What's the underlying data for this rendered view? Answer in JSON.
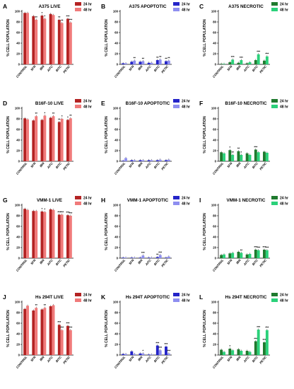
{
  "legend": {
    "series_a": "24 hr",
    "series_b": "48 hr"
  },
  "axis": {
    "ylabel": "% CELL POPULATION"
  },
  "colors": {
    "live_a": "#b32323",
    "live_b": "#f07a7a",
    "apop_a": "#2424c8",
    "apop_b": "#8e8ef0",
    "necr_a": "#1f7a2e",
    "necr_b": "#2bd17a",
    "axis": "#000000"
  },
  "chart_data": [
    {
      "type": "bar",
      "letter": "A",
      "title": "A375 LIVE",
      "ylabel": "% CELL POPULATION",
      "ylim": [
        0,
        100
      ],
      "yticks": [
        0,
        20,
        40,
        60,
        80,
        100
      ],
      "palette": "live",
      "categories": [
        "CONTROL",
        "SFN",
        "IBN",
        "AITC",
        "BITC",
        "PETIC"
      ],
      "series": [
        {
          "name": "24 hr",
          "values": [
            97,
            91,
            92,
            95,
            84,
            86
          ]
        },
        {
          "name": "48 hr",
          "values": [
            97,
            84,
            86,
            93,
            78,
            79
          ]
        }
      ],
      "significance": [
        [
          "",
          ""
        ],
        [
          "",
          "**"
        ],
        [
          "*",
          "*"
        ],
        [
          "",
          ""
        ],
        [
          "**",
          "**"
        ],
        [
          "***",
          "***"
        ]
      ]
    },
    {
      "type": "bar",
      "letter": "B",
      "title": "A375 APOPTOTIC",
      "ylabel": "% CELL POPULATION",
      "ylim": [
        0,
        100
      ],
      "yticks": [
        0,
        20,
        40,
        60,
        80,
        100
      ],
      "palette": "apop",
      "categories": [
        "CONTROL",
        "SFN",
        "IBN",
        "AITC",
        "BITC",
        "PETIC"
      ],
      "series": [
        {
          "name": "24 hr",
          "values": [
            2,
            5,
            5,
            3,
            8,
            6
          ]
        },
        {
          "name": "48 hr",
          "values": [
            2,
            7,
            6,
            3,
            9,
            7
          ]
        }
      ],
      "significance": [
        [
          "",
          ""
        ],
        [
          "",
          "**"
        ],
        [
          "",
          "**"
        ],
        [
          "",
          ""
        ],
        [
          "**",
          "**"
        ],
        [
          "**",
          "**"
        ]
      ]
    },
    {
      "type": "bar",
      "letter": "C",
      "title": "A375 NECROTIC",
      "ylabel": "% CELL POPULATION",
      "ylim": [
        0,
        100
      ],
      "yticks": [
        0,
        20,
        40,
        60,
        80,
        100
      ],
      "palette": "necr",
      "categories": [
        "CONTROL",
        "SFN",
        "IBN",
        "AITC",
        "BITC",
        "PETIC"
      ],
      "series": [
        {
          "name": "24 hr",
          "values": [
            1,
            4,
            3,
            2,
            8,
            7
          ]
        },
        {
          "name": "48 hr",
          "values": [
            1,
            9,
            8,
            4,
            19,
            15
          ]
        }
      ],
      "significance": [
        [
          "",
          ""
        ],
        [
          "",
          "***"
        ],
        [
          "",
          "***"
        ],
        [
          "",
          ""
        ],
        [
          "",
          "***"
        ],
        [
          "",
          "***"
        ]
      ]
    },
    {
      "type": "bar",
      "letter": "D",
      "title": "B16F-10 LIVE",
      "ylabel": "% CELL POPULATION",
      "ylim": [
        0,
        100
      ],
      "yticks": [
        0,
        20,
        40,
        60,
        80,
        100
      ],
      "palette": "live",
      "categories": [
        "CONTROL",
        "SFN",
        "IBN",
        "AITC",
        "BITC",
        "PETIC"
      ],
      "series": [
        {
          "name": "24 hr",
          "values": [
            81,
            77,
            78,
            82,
            74,
            78
          ]
        },
        {
          "name": "48 hr",
          "values": [
            79,
            85,
            86,
            85,
            80,
            81
          ]
        }
      ],
      "significance": [
        [
          "",
          ""
        ],
        [
          "",
          "**"
        ],
        [
          "",
          "*"
        ],
        [
          "",
          "**"
        ],
        [
          "**",
          "*"
        ],
        [
          "*",
          "**"
        ]
      ]
    },
    {
      "type": "bar",
      "letter": "E",
      "title": "B16F-10 APOPTOTIC",
      "ylabel": "% CELL POPULATION",
      "ylim": [
        0,
        100
      ],
      "yticks": [
        0,
        20,
        40,
        60,
        80,
        100
      ],
      "palette": "apop",
      "categories": [
        "CONTROL",
        "SFN",
        "IBN",
        "AITC",
        "BITC",
        "PETIC"
      ],
      "series": [
        {
          "name": "24 hr",
          "values": [
            1,
            2,
            2,
            2,
            2,
            2
          ]
        },
        {
          "name": "48 hr",
          "values": [
            6,
            2,
            2,
            2,
            3,
            3
          ]
        }
      ],
      "significance": [
        [
          "",
          ""
        ],
        [
          "",
          ""
        ],
        [
          "",
          ""
        ],
        [
          "",
          ""
        ],
        [
          "",
          ""
        ],
        [
          "",
          ""
        ]
      ]
    },
    {
      "type": "bar",
      "letter": "F",
      "title": "B16F-10 NECROTIC",
      "ylabel": "% CELL POPULATION",
      "ylim": [
        0,
        100
      ],
      "yticks": [
        0,
        20,
        40,
        60,
        80,
        100
      ],
      "palette": "necr",
      "categories": [
        "CONTROL",
        "SFN",
        "IBN",
        "AITC",
        "BITC",
        "PETIC"
      ],
      "series": [
        {
          "name": "24 hr",
          "values": [
            17,
            21,
            19,
            15,
            22,
            18
          ]
        },
        {
          "name": "48 hr",
          "values": [
            15,
            12,
            12,
            12,
            17,
            16
          ]
        }
      ],
      "significance": [
        [
          "",
          ""
        ],
        [
          "*",
          "**"
        ],
        [
          "**",
          "*"
        ],
        [
          "",
          ""
        ],
        [
          "***",
          ""
        ],
        [
          "",
          ""
        ]
      ]
    },
    {
      "type": "bar",
      "letter": "G",
      "title": "VMM-1 LIVE",
      "ylabel": "% CELL POPULATION",
      "ylim": [
        0,
        100
      ],
      "yticks": [
        0,
        20,
        40,
        60,
        80,
        100
      ],
      "palette": "live",
      "categories": [
        "CONTROL",
        "SFN",
        "IBN",
        "AITC",
        "BITC",
        "PETIC"
      ],
      "series": [
        {
          "name": "24 hr",
          "values": [
            93,
            89,
            88,
            92,
            82,
            81
          ]
        },
        {
          "name": "48 hr",
          "values": [
            91,
            89,
            87,
            91,
            82,
            80
          ]
        }
      ],
      "significance": [
        [
          "",
          ""
        ],
        [
          "",
          ""
        ],
        [
          "*",
          "*"
        ],
        [
          "",
          ""
        ],
        [
          "***",
          "***"
        ],
        [
          "***",
          "***"
        ]
      ]
    },
    {
      "type": "bar",
      "letter": "H",
      "title": "VMM-1 APOPTOTIC",
      "ylabel": "% CELL POPULATION",
      "ylim": [
        0,
        100
      ],
      "yticks": [
        0,
        20,
        40,
        60,
        80,
        100
      ],
      "palette": "apop",
      "categories": [
        "CONTROL",
        "SFN",
        "IBN",
        "AITC",
        "BITC",
        "PETIC"
      ],
      "series": [
        {
          "name": "24 hr",
          "values": [
            1,
            1,
            1,
            1,
            2,
            1
          ]
        },
        {
          "name": "48 hr",
          "values": [
            1,
            1,
            5,
            1,
            6,
            3
          ]
        }
      ],
      "significance": [
        [
          "",
          ""
        ],
        [
          "",
          ""
        ],
        [
          "",
          "***"
        ],
        [
          "",
          ""
        ],
        [
          "**",
          "***"
        ],
        [
          "",
          ""
        ]
      ]
    },
    {
      "type": "bar",
      "letter": "I",
      "title": "VMM-1 NECROTIC",
      "ylabel": "% CELL POPULATION",
      "ylim": [
        0,
        100
      ],
      "yticks": [
        0,
        20,
        40,
        60,
        80,
        100
      ],
      "palette": "necr",
      "categories": [
        "CONTROL",
        "SFN",
        "IBN",
        "AITC",
        "BITC",
        "PETIC"
      ],
      "series": [
        {
          "name": "24 hr",
          "values": [
            6,
            9,
            12,
            7,
            16,
            16
          ]
        },
        {
          "name": "48 hr",
          "values": [
            7,
            10,
            10,
            8,
            15,
            15
          ]
        }
      ],
      "significance": [
        [
          "",
          ""
        ],
        [
          "",
          ""
        ],
        [
          "",
          "**"
        ],
        [
          "",
          ""
        ],
        [
          "***",
          "***"
        ],
        [
          "***",
          "***"
        ]
      ]
    },
    {
      "type": "bar",
      "letter": "J",
      "title": "Hs 294T LIVE",
      "ylabel": "% CELL POPULATION",
      "ylim": [
        0,
        100
      ],
      "yticks": [
        0,
        20,
        40,
        60,
        80,
        100
      ],
      "palette": "live",
      "categories": [
        "CONTROL",
        "SFN",
        "IBN",
        "AITC",
        "BITC",
        "PETIC"
      ],
      "series": [
        {
          "name": "24 hr",
          "values": [
            87,
            84,
            86,
            92,
            57,
            55
          ]
        },
        {
          "name": "48 hr",
          "values": [
            93,
            89,
            89,
            94,
            47,
            47
          ]
        }
      ],
      "significance": [
        [
          "",
          ""
        ],
        [
          "",
          "**"
        ],
        [
          "",
          "**"
        ],
        [
          "",
          ""
        ],
        [
          "***",
          "***"
        ],
        [
          "***",
          "***"
        ]
      ]
    },
    {
      "type": "bar",
      "letter": "K",
      "title": "Hs 294T APOPTOTIC",
      "ylabel": "% CELL POPULATION",
      "ylim": [
        0,
        100
      ],
      "yticks": [
        0,
        20,
        40,
        60,
        80,
        100
      ],
      "palette": "apop",
      "categories": [
        "CONTROL",
        "SFN",
        "IBN",
        "AITC",
        "BITC",
        "PETIC"
      ],
      "series": [
        {
          "name": "24 hr",
          "values": [
            2,
            7,
            3,
            1,
            18,
            16
          ]
        },
        {
          "name": "48 hr",
          "values": [
            2,
            2,
            3,
            1,
            9,
            3
          ]
        }
      ],
      "significance": [
        [
          "",
          ""
        ],
        [
          "",
          ""
        ],
        [
          "",
          "*"
        ],
        [
          "",
          ""
        ],
        [
          "***",
          "***"
        ],
        [
          "***",
          "***"
        ]
      ]
    },
    {
      "type": "bar",
      "letter": "L",
      "title": "Hs 294T NECROTIC",
      "ylabel": "% CELL POPULATION",
      "ylim": [
        0,
        100
      ],
      "yticks": [
        0,
        20,
        40,
        60,
        80,
        100
      ],
      "palette": "necr",
      "categories": [
        "CONTROL",
        "SFN",
        "IBN",
        "AITC",
        "BITC",
        "PETIC"
      ],
      "series": [
        {
          "name": "24 hr",
          "values": [
            10,
            12,
            11,
            8,
            26,
            24
          ]
        },
        {
          "name": "48 hr",
          "values": [
            6,
            9,
            8,
            6,
            48,
            47
          ]
        }
      ],
      "significance": [
        [
          "",
          ""
        ],
        [
          "*",
          ""
        ],
        [
          "",
          ""
        ],
        [
          "",
          ""
        ],
        [
          "***",
          "***"
        ],
        [
          "***",
          "***"
        ]
      ]
    }
  ]
}
